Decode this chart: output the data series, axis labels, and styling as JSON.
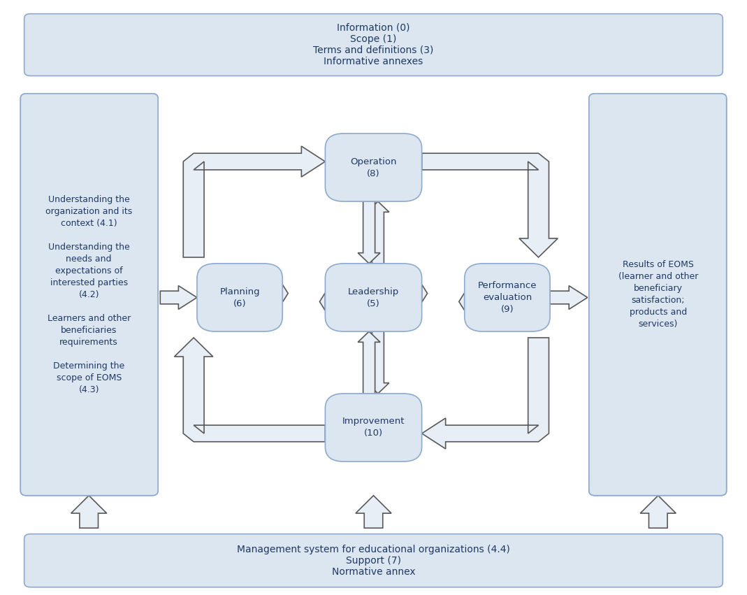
{
  "bg_color": "#ffffff",
  "box_fill": "#dce6f1",
  "box_edge": "#8eaacc",
  "text_color": "#1f3864",
  "title_top": "Information (0)\nScope (1)\nTerms and definitions (3)\nInformative annexes",
  "title_bottom": "Management system for educational organizations (4.4)\nSupport (7)\nNormative annex",
  "left_box_text": "Understanding the\norganization and its\ncontext (4.1)\n\nUnderstanding the\nneeds and\nexpectations of\ninterested parties\n(4.2)\n\nLearners and other\nbeneficiaries\nrequirements\n\nDetermining the\nscope of EOMS\n(4.3)",
  "right_box_text": "Results of EOMS\n(learner and other\nbeneficiary\nsatisfaction;\nproducts and\nservices)",
  "node_fill": "#dce6f1",
  "node_edge": "#8eaacc",
  "arrow_fill": "#e8eef5",
  "arrow_edge": "#595959",
  "arrow_lw": 1.2
}
